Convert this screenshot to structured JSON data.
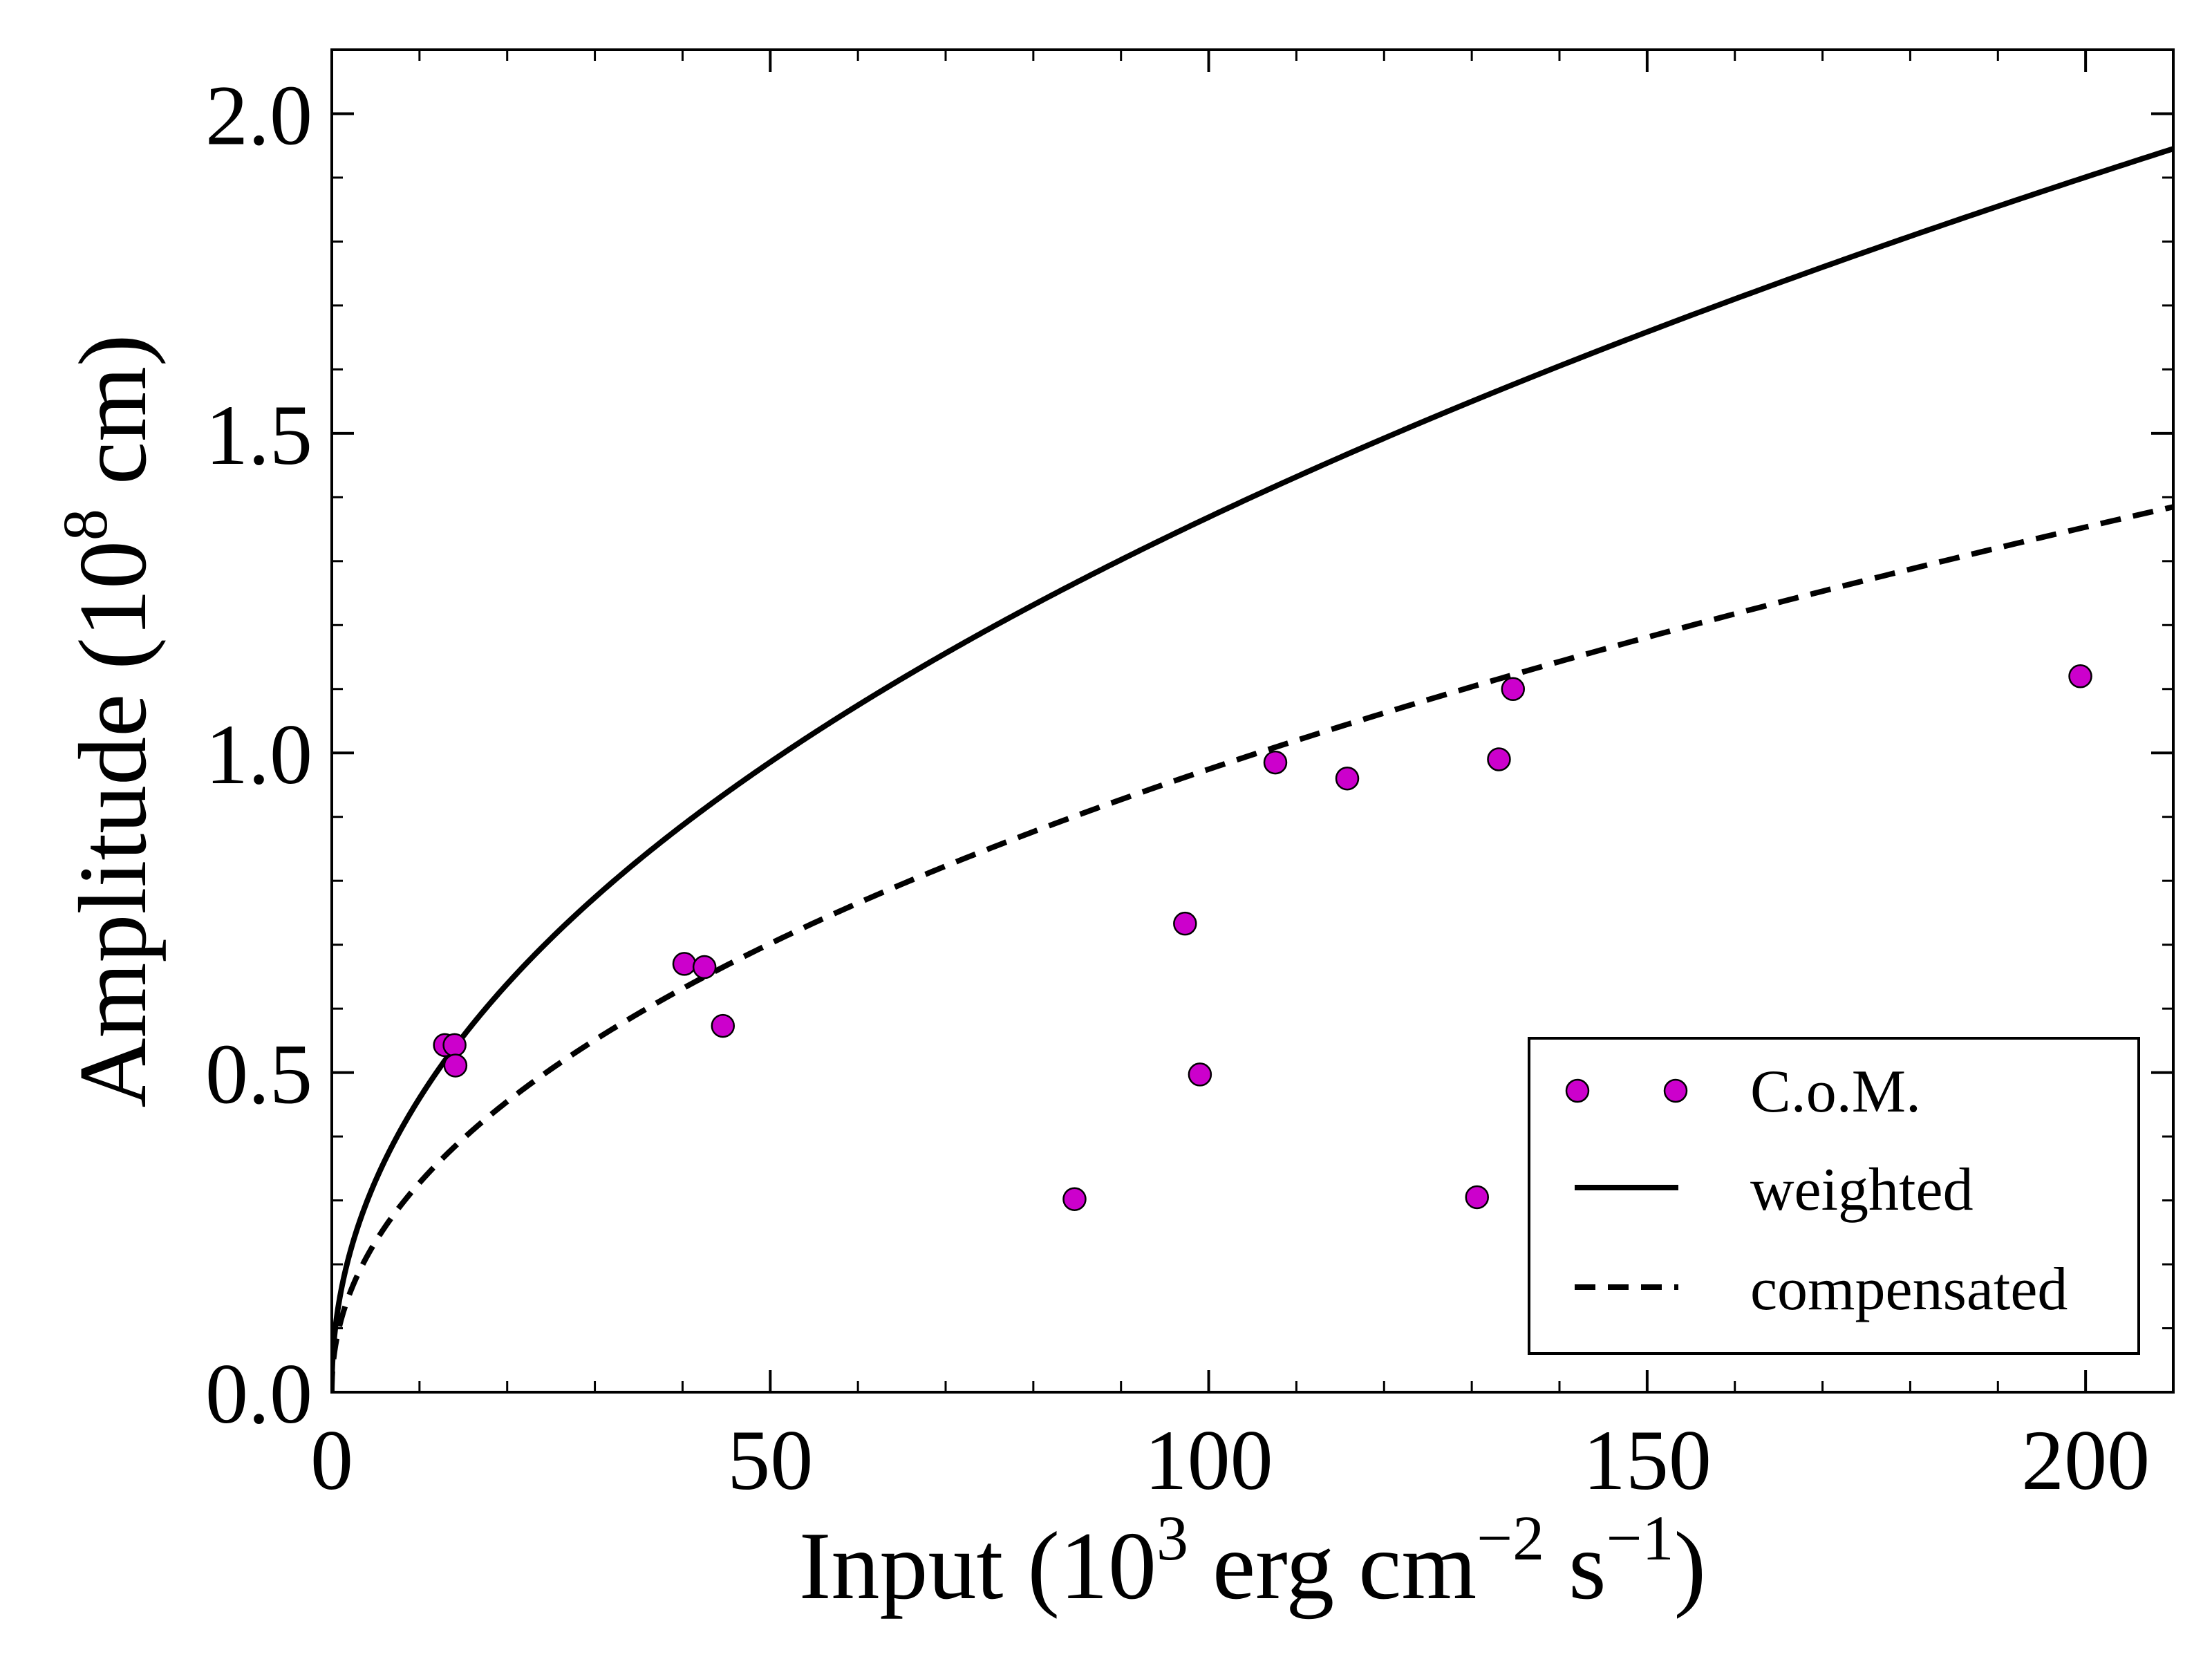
{
  "chart_data": {
    "type": "scatter",
    "xlabel": {
      "base": "Input (10",
      "exp1": "3",
      "mid": " erg cm",
      "exp2": "−2",
      "mid2": " s",
      "exp3": "−1",
      "end": ")"
    },
    "ylabel": {
      "base": "Amplitude (10",
      "exp": "8",
      "end": " cm)"
    },
    "xlim": [
      0,
      210
    ],
    "ylim": [
      0,
      2.1
    ],
    "xticks": [
      0,
      50,
      100,
      150,
      200
    ],
    "xtick_labels": [
      "0",
      "50",
      "100",
      "150",
      "200"
    ],
    "yticks": [
      0.0,
      0.5,
      1.0,
      1.5,
      2.0
    ],
    "ytick_labels": [
      "0.0",
      "0.5",
      "1.0",
      "1.5",
      "2.0"
    ],
    "x_minor_step": 10,
    "y_minor_step": 0.1,
    "marker_color": "#cc00cc",
    "series": [
      {
        "name": "C.o.M.",
        "kind": "scatter",
        "points": [
          [
            12.9,
            0.543
          ],
          [
            14.0,
            0.543
          ],
          [
            14.1,
            0.511
          ],
          [
            40.2,
            0.67
          ],
          [
            42.5,
            0.665
          ],
          [
            44.6,
            0.573
          ],
          [
            84.7,
            0.302
          ],
          [
            97.3,
            0.733
          ],
          [
            99.0,
            0.497
          ],
          [
            107.6,
            0.985
          ],
          [
            115.8,
            0.96
          ],
          [
            130.6,
            0.305
          ],
          [
            133.1,
            0.99
          ],
          [
            134.7,
            1.1
          ],
          [
            199.4,
            1.12
          ]
        ]
      },
      {
        "name": "weighted",
        "kind": "line",
        "style": "solid",
        "model": {
          "coef": 0.1545,
          "power": 0.4737
        }
      },
      {
        "name": "compensated",
        "kind": "line",
        "style": "dashed",
        "model": {
          "coef": 0.11,
          "power": 0.4737
        }
      }
    ],
    "legend": {
      "position": "lower-right",
      "entries": [
        "C.o.M.",
        "weighted",
        "compensated"
      ]
    }
  }
}
